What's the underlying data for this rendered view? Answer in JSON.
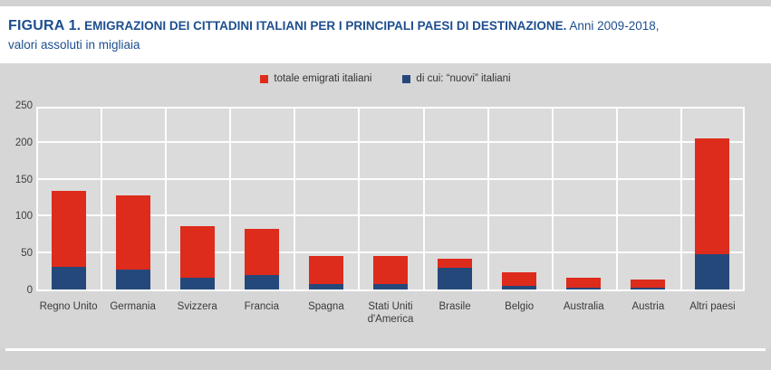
{
  "header": {
    "figure_label": "FIGURA 1.",
    "title": "EMIGRAZIONI DEI CITTADINI ITALIANI PER I PRINCIPALI PAESI DI DESTINAZIONE.",
    "subtitle_part1": "Anni 2009-2018,",
    "subtitle_part2": "valori assoluti in migliaia"
  },
  "legend": {
    "items": [
      {
        "label": "totale emigrati italiani",
        "color": "#dd2b1c"
      },
      {
        "label": "di cui: “nuovi” italiani",
        "color": "#25487b"
      }
    ]
  },
  "chart_data": {
    "type": "bar",
    "title": "EMIGRAZIONI DEI CITTADINI ITALIANI PER I PRINCIPALI PAESI DI DESTINAZIONE. Anni 2009-2018, valori assoluti in migliaia",
    "categories": [
      "Regno Unito",
      "Germania",
      "Svizzera",
      "Francia",
      "Spagna",
      "Stati Uniti d'America",
      "Brasile",
      "Belgio",
      "Australia",
      "Austria",
      "Altri paesi"
    ],
    "series": [
      {
        "name": "totale emigrati italiani",
        "color": "#dd2b1c",
        "values": [
          133,
          127,
          86,
          82,
          45,
          45,
          42,
          23,
          16,
          14,
          205
        ]
      },
      {
        "name": "di cui: “nuovi” italiani",
        "color": "#25487b",
        "values": [
          31,
          27,
          16,
          20,
          7,
          7,
          30,
          5,
          2,
          2,
          48
        ]
      }
    ],
    "overlay_note": "second series drawn over first from baseline (di cui / subset)",
    "xlabel": "",
    "ylabel": "",
    "ylim": [
      0,
      250
    ],
    "yticks": [
      0,
      50,
      100,
      150,
      200,
      250
    ],
    "grid": true,
    "legend_position": "top-center",
    "plot_background": "#dbdbdb",
    "gridline_color": "#ffffff"
  },
  "colors": {
    "title_blue": "#1d4e8f",
    "panel_gray": "#d6d6d6",
    "outer_gray": "#d2d2d2",
    "axis_text": "#3d3d3d"
  }
}
